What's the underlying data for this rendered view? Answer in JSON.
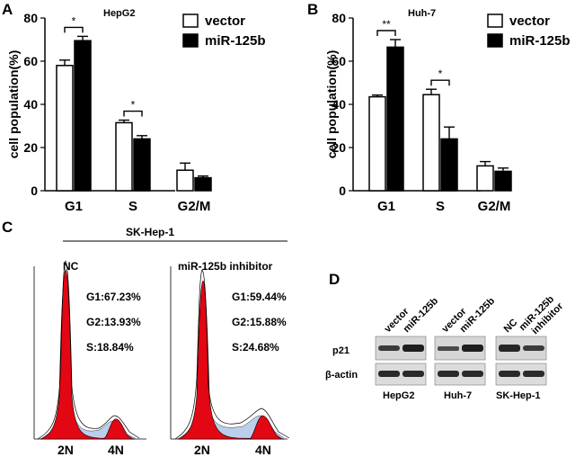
{
  "panels": {
    "A": "A",
    "B": "B",
    "C": "C",
    "D": "D"
  },
  "chart_data": [
    {
      "type": "bar",
      "title": "HepG2",
      "ylabel": "cell population(%)",
      "categories": [
        "G1",
        "S",
        "G2/M"
      ],
      "ylim": [
        0,
        80
      ],
      "yticks": [
        "0",
        "20",
        "40",
        "60",
        "80"
      ],
      "series": [
        {
          "name": "vector",
          "color": "#ffffff",
          "values": [
            58,
            31.5,
            9.5
          ],
          "errors": [
            2.5,
            1.2,
            3.3
          ]
        },
        {
          "name": "miR-125b",
          "color": "#000000",
          "values": [
            69.5,
            24,
            6
          ],
          "errors": [
            2,
            1.5,
            0.8
          ]
        }
      ],
      "significance": [
        {
          "category": "G1",
          "label": "*"
        },
        {
          "category": "S",
          "label": "*"
        }
      ]
    },
    {
      "type": "bar",
      "title": "Huh-7",
      "ylabel": "cell population(%)",
      "categories": [
        "G1",
        "S",
        "G2/M"
      ],
      "ylim": [
        0,
        80
      ],
      "yticks": [
        "0",
        "20",
        "40",
        "60",
        "80"
      ],
      "series": [
        {
          "name": "vector",
          "color": "#ffffff",
          "values": [
            43.5,
            44.5,
            11.5
          ],
          "errors": [
            0.8,
            2.5,
            2
          ]
        },
        {
          "name": "miR-125b",
          "color": "#000000",
          "values": [
            66.5,
            24,
            9
          ],
          "errors": [
            3.5,
            5.5,
            1.5
          ]
        }
      ],
      "significance": [
        {
          "category": "G1",
          "label": "**"
        },
        {
          "category": "S",
          "label": "*"
        }
      ]
    }
  ],
  "flow": {
    "header": "SK-Hep-1",
    "left": {
      "label": "NC",
      "g1": "G1:67.23%",
      "g2": "G2:13.93%",
      "s": "S:18.84%"
    },
    "right": {
      "label": "miR-125b inhibitor",
      "g1": "G1:59.44%",
      "g2": "G2:15.88%",
      "s": "S:24.68%"
    },
    "x_labels": [
      "2N",
      "4N"
    ]
  },
  "western": {
    "row_labels": [
      "p21",
      "β-actin"
    ],
    "groups": [
      {
        "name": "HepG2",
        "lanes": [
          "vector",
          "miR-125b"
        ]
      },
      {
        "name": "Huh-7",
        "lanes": [
          "vector",
          "miR-125b"
        ]
      },
      {
        "name": "SK-Hep-1",
        "lanes": [
          "NC",
          "miR-125b inhibitor"
        ]
      }
    ],
    "inhibitor_line1": "miR-125b",
    "inhibitor_line2": "inhibitor"
  }
}
